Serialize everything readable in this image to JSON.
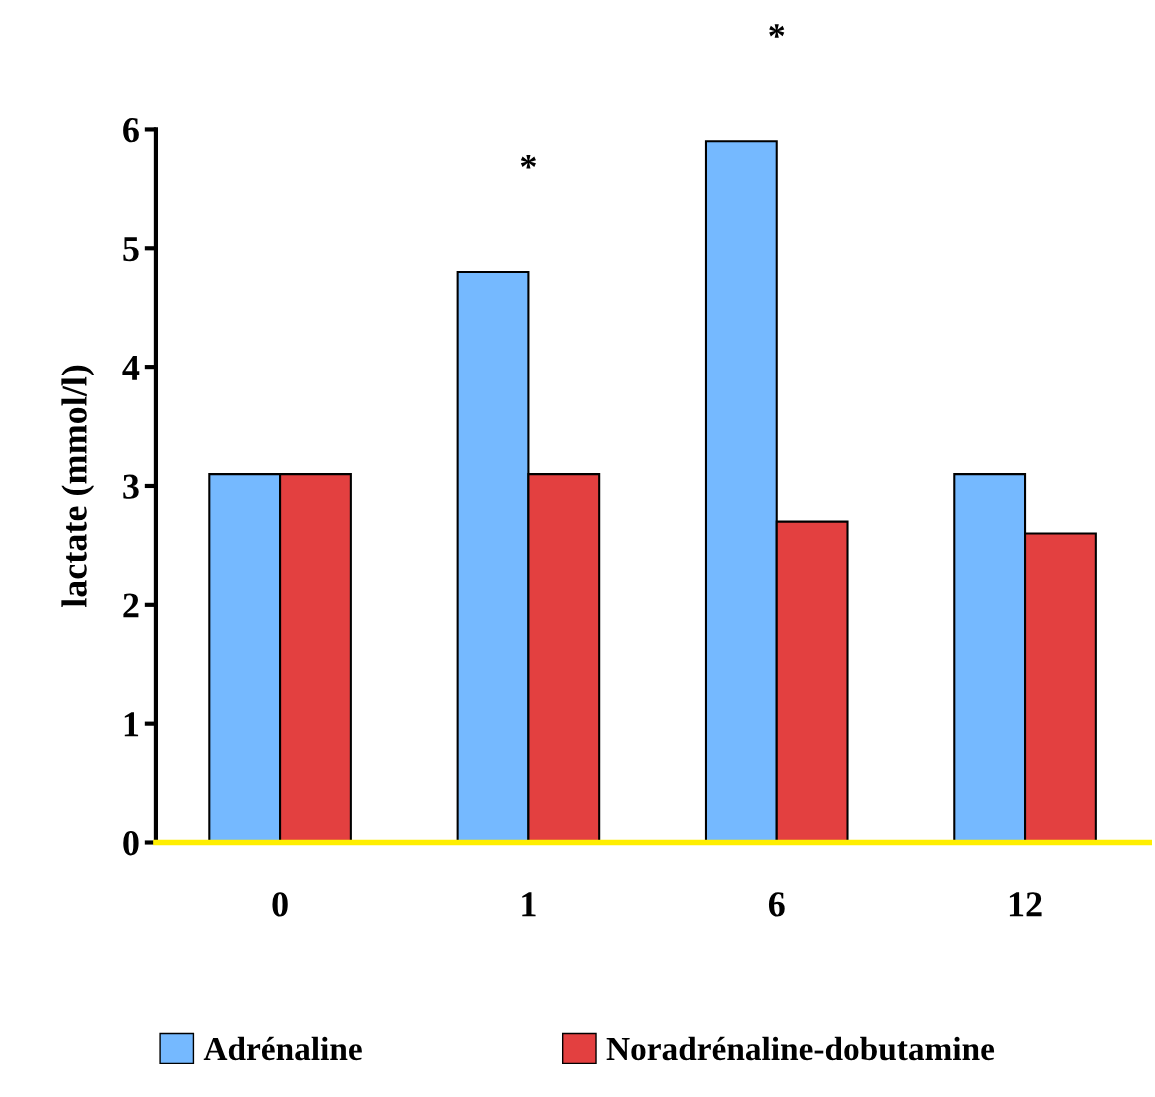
{
  "chart_data": {
    "type": "bar",
    "ylabel": "lactate (mmol/l)",
    "categories": [
      "0",
      "1",
      "6",
      "12"
    ],
    "series": [
      {
        "name": "Adrénaline",
        "color": "#75b9ff",
        "values": [
          3.1,
          4.8,
          5.9,
          3.1
        ]
      },
      {
        "name": "Noradrénaline-dobutamine",
        "color": "#e34040",
        "values": [
          3.1,
          3.1,
          2.7,
          2.6
        ]
      }
    ],
    "ylim": [
      0,
      6
    ],
    "yticks": [
      0,
      1,
      2,
      3,
      4,
      5,
      6
    ],
    "grid": false,
    "legend": "bottom",
    "annotations": [
      "*",
      "*"
    ]
  }
}
